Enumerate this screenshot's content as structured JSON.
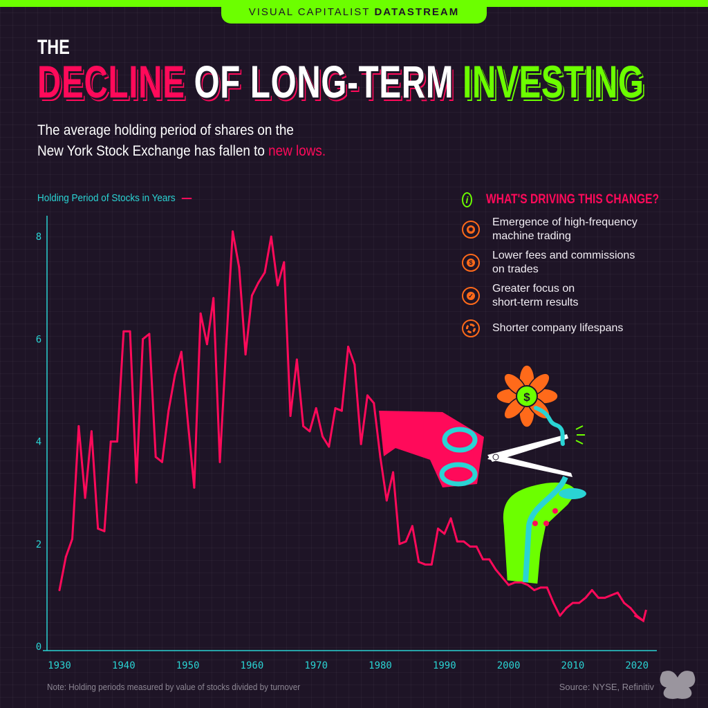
{
  "brand": {
    "prefix": "VISUAL CAPITALIST",
    "name": "DATASTREAM"
  },
  "title": {
    "pre": "THE",
    "word1": "DECLINE",
    "word2": "OF LONG-TERM",
    "word3": "INVESTING"
  },
  "subtitle": {
    "line1": "The average holding period of shares on the",
    "line2": "New York Stock Exchange has fallen to",
    "highlight": "new lows."
  },
  "drivers": {
    "heading": "WHAT'S DRIVING THIS CHANGE?",
    "info_icon": "i",
    "items": [
      {
        "icon": "gear-icon",
        "line1": "Emergence of high-frequency",
        "line2": "machine trading"
      },
      {
        "icon": "dollar-icon",
        "line1": "Lower fees and commissions",
        "line2": "on trades"
      },
      {
        "icon": "target-check-icon",
        "line1": "Greater focus on",
        "line2": "short-term results"
      },
      {
        "icon": "cycle-icon",
        "line1": "Shorter company lifespans",
        "line2": ""
      }
    ]
  },
  "footer": {
    "note": "Note: Holding periods measured by value of stocks divided by turnover",
    "source": "Source: NYSE, Refinitiv"
  },
  "colors": {
    "line": "#ff0a5a",
    "axis": "#2ad4d4",
    "accent_green": "#6cff00",
    "accent_orange": "#ff6a1a",
    "background": "#1e1426"
  },
  "chart_data": {
    "type": "line",
    "title": "The Decline of Long-Term Investing",
    "legend": "Holding Period of Stocks in Years",
    "xlabel": "",
    "ylabel": "Holding Period of Stocks in Years",
    "xlim": [
      1928,
      2023
    ],
    "ylim": [
      0,
      8.3
    ],
    "x_ticks": [
      1930,
      1940,
      1950,
      1960,
      1970,
      1980,
      1990,
      2000,
      2010,
      2020
    ],
    "y_ticks": [
      0,
      2,
      4,
      6,
      8
    ],
    "series": [
      {
        "name": "Holding Period (years)",
        "x": [
          1930,
          1931,
          1932,
          1933,
          1934,
          1935,
          1936,
          1937,
          1938,
          1939,
          1940,
          1941,
          1942,
          1943,
          1944,
          1945,
          1946,
          1947,
          1948,
          1949,
          1950,
          1951,
          1952,
          1953,
          1954,
          1955,
          1956,
          1957,
          1958,
          1959,
          1960,
          1961,
          1962,
          1963,
          1964,
          1965,
          1966,
          1967,
          1968,
          1969,
          1970,
          1971,
          1972,
          1973,
          1974,
          1975,
          1976,
          1977,
          1978,
          1979,
          1980,
          1981,
          1982,
          1983,
          1984,
          1985,
          1986,
          1987,
          1988,
          1989,
          1990,
          1991,
          1992,
          1993,
          1994,
          1995,
          1996,
          1997,
          1998,
          1999,
          2000,
          2001,
          2002,
          2003,
          2004,
          2005,
          2006,
          2007,
          2008,
          2009,
          2010,
          2011,
          2012,
          2013,
          2014,
          2015,
          2016,
          2017,
          2018,
          2019,
          2020,
          2021
        ],
        "values": [
          1.1,
          1.75,
          2.1,
          4.3,
          2.9,
          4.2,
          2.3,
          2.25,
          4.0,
          4.0,
          6.15,
          6.15,
          3.2,
          6.0,
          6.1,
          3.7,
          3.6,
          4.6,
          5.3,
          5.75,
          4.4,
          3.1,
          6.5,
          5.9,
          6.8,
          3.6,
          5.9,
          8.1,
          7.4,
          5.7,
          6.85,
          7.1,
          7.3,
          8.0,
          7.05,
          7.5,
          4.5,
          5.6,
          4.3,
          4.2,
          4.65,
          4.1,
          3.9,
          4.65,
          4.6,
          5.85,
          5.5,
          3.95,
          4.9,
          4.75,
          3.7,
          2.85,
          3.4,
          2.0,
          2.05,
          2.35,
          1.65,
          1.6,
          1.6,
          2.3,
          2.2,
          2.5,
          2.05,
          2.05,
          1.95,
          1.95,
          1.7,
          1.7,
          1.5,
          1.35,
          1.2,
          1.25,
          1.25,
          1.2,
          1.1,
          1.15,
          1.15,
          0.85,
          0.6,
          0.75,
          0.85,
          0.85,
          0.95,
          1.1,
          0.95,
          0.95,
          1.0,
          1.05,
          0.85,
          0.75,
          0.6,
          0.5
        ]
      }
    ]
  }
}
